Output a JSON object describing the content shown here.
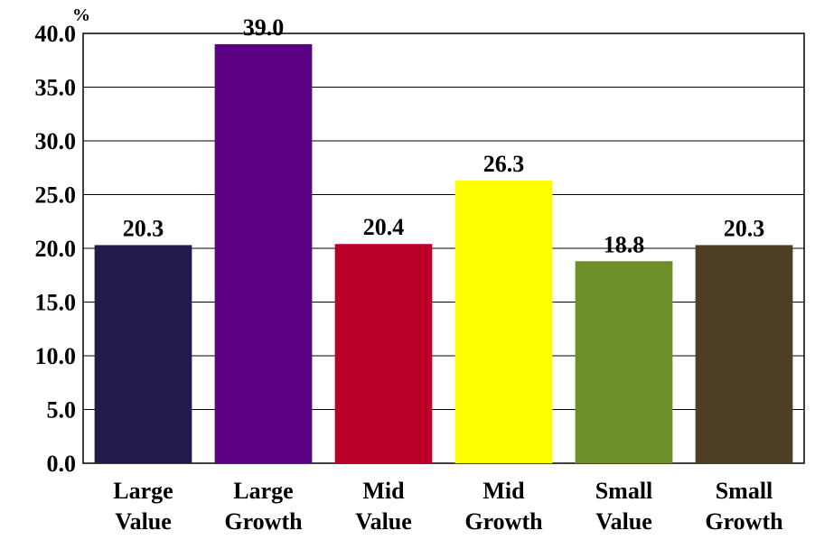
{
  "chart_data": {
    "type": "bar",
    "categories": [
      [
        "Large",
        "Value"
      ],
      [
        "Large",
        "Growth"
      ],
      [
        "Mid",
        "Value"
      ],
      [
        "Mid",
        "Growth"
      ],
      [
        "Small",
        "Value"
      ],
      [
        "Small",
        "Growth"
      ]
    ],
    "values": [
      20.3,
      39.0,
      20.4,
      26.3,
      18.8,
      20.3
    ],
    "data_labels": [
      "20.3",
      "39.0",
      "20.4",
      "26.3",
      "18.8",
      "20.3"
    ],
    "colors": [
      "#211A4A",
      "#5A0080",
      "#BB0028",
      "#FFFF00",
      "#6E8F28",
      "#4E3F24"
    ],
    "ylim": [
      0,
      40
    ],
    "y_ticks": [
      0,
      5,
      10,
      15,
      20,
      25,
      30,
      35,
      40
    ],
    "y_tick_labels": [
      "0.0",
      "5.0",
      "10.0",
      "15.0",
      "20.0",
      "25.0",
      "30.0",
      "35.0",
      "40.0"
    ],
    "y_unit": "%",
    "grid": true,
    "title": "",
    "xlabel": "",
    "ylabel": ""
  }
}
